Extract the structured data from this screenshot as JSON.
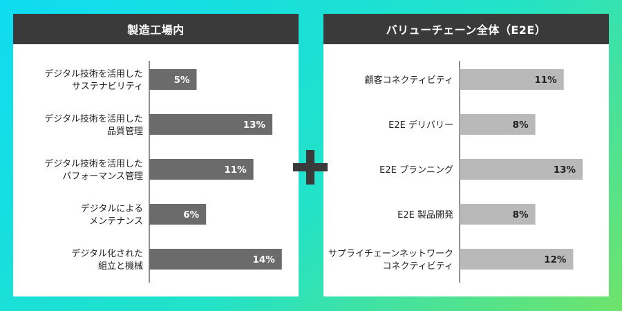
{
  "colors": {
    "header_bg": "#3a3a3a",
    "left_bar": "#6b6b6b",
    "right_bar": "#b9b9b9",
    "plus": "#3a3a3a"
  },
  "plus_icon": "plus-icon",
  "chart_data": [
    {
      "type": "bar",
      "orientation": "horizontal",
      "title": "製造工場内",
      "categories": [
        [
          "デジタル技術を活用した",
          "サステナビリティ"
        ],
        [
          "デジタル技術を活用した",
          "品質管理"
        ],
        [
          "デジタル技術を活用した",
          "パフォーマンス管理"
        ],
        [
          "デジタルによる",
          "メンテナンス"
        ],
        [
          "デジタル化された",
          "組立と機械"
        ]
      ],
      "values": [
        5,
        13,
        11,
        6,
        14
      ],
      "value_labels": [
        "5%",
        "13%",
        "11%",
        "6%",
        "14%"
      ],
      "xlim": [
        0,
        16
      ],
      "grid": false
    },
    {
      "type": "bar",
      "orientation": "horizontal",
      "title": "バリューチェーン全体（E2E）",
      "categories": [
        [
          "顧客コネクティビティ"
        ],
        [
          "E2E デリバリー"
        ],
        [
          "E2E プランニング"
        ],
        [
          "E2E 製品開発"
        ],
        [
          "サプライチェーンネットワーク",
          "コネクティビティ"
        ]
      ],
      "values": [
        11,
        8,
        13,
        8,
        12
      ],
      "value_labels": [
        "11%",
        "8%",
        "13%",
        "8%",
        "12%"
      ],
      "xlim": [
        0,
        16
      ],
      "grid": false
    }
  ]
}
